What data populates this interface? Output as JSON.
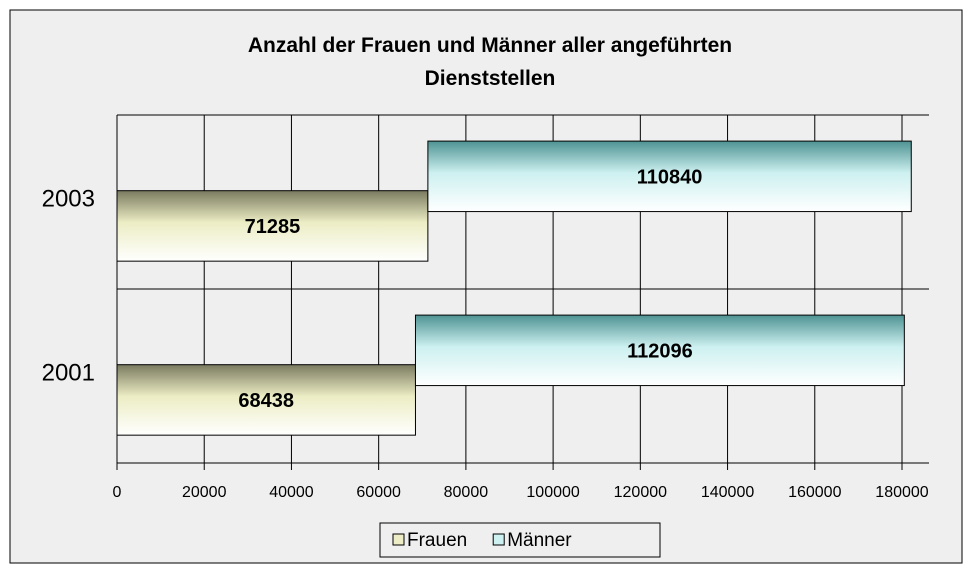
{
  "chart_data": {
    "type": "bar",
    "orientation": "horizontal",
    "stacked": true,
    "title": "Anzahl der Frauen und Männer aller angeführten Dienststellen",
    "categories": [
      "2001",
      "2003"
    ],
    "series": [
      {
        "name": "Frauen",
        "color": "#ecedc4",
        "values": [
          68438,
          71285
        ]
      },
      {
        "name": "Männer",
        "color": "#cdf0f0",
        "values": [
          112096,
          110840
        ]
      }
    ],
    "xlim": [
      0,
      180000
    ],
    "xticks": [
      0,
      20000,
      40000,
      60000,
      80000,
      100000,
      120000,
      140000,
      160000,
      180000
    ],
    "grid": true,
    "legend": "bottom"
  }
}
